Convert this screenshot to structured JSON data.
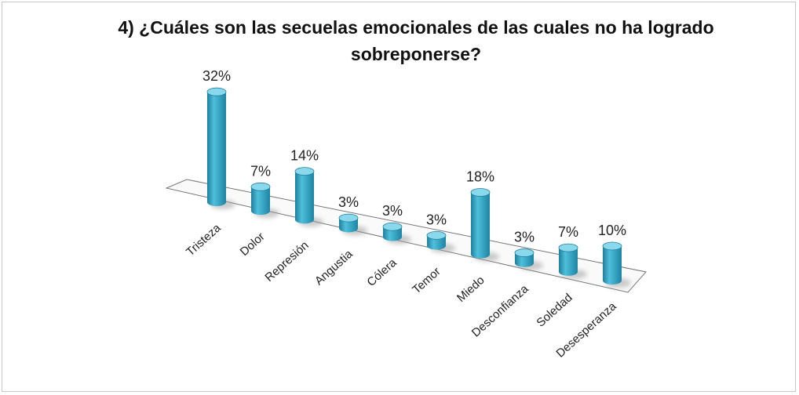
{
  "chart_data": {
    "type": "bar",
    "title": "4) ¿Cuáles son las secuelas emocionales de las cuales no ha logrado sobreponerse?",
    "categories": [
      "Tristeza",
      "Dolor",
      "Represión",
      "Angustia",
      "Cólera",
      "Temor",
      "Miedo",
      "Desconfianza",
      "Soledad",
      "Desesperanza"
    ],
    "values": [
      32,
      7,
      14,
      3,
      3,
      3,
      18,
      3,
      7,
      10
    ],
    "value_labels": [
      "32%",
      "7%",
      "14%",
      "3%",
      "3%",
      "3%",
      "18%",
      "3%",
      "7%",
      "10%"
    ],
    "color": "#2b9fc0"
  }
}
